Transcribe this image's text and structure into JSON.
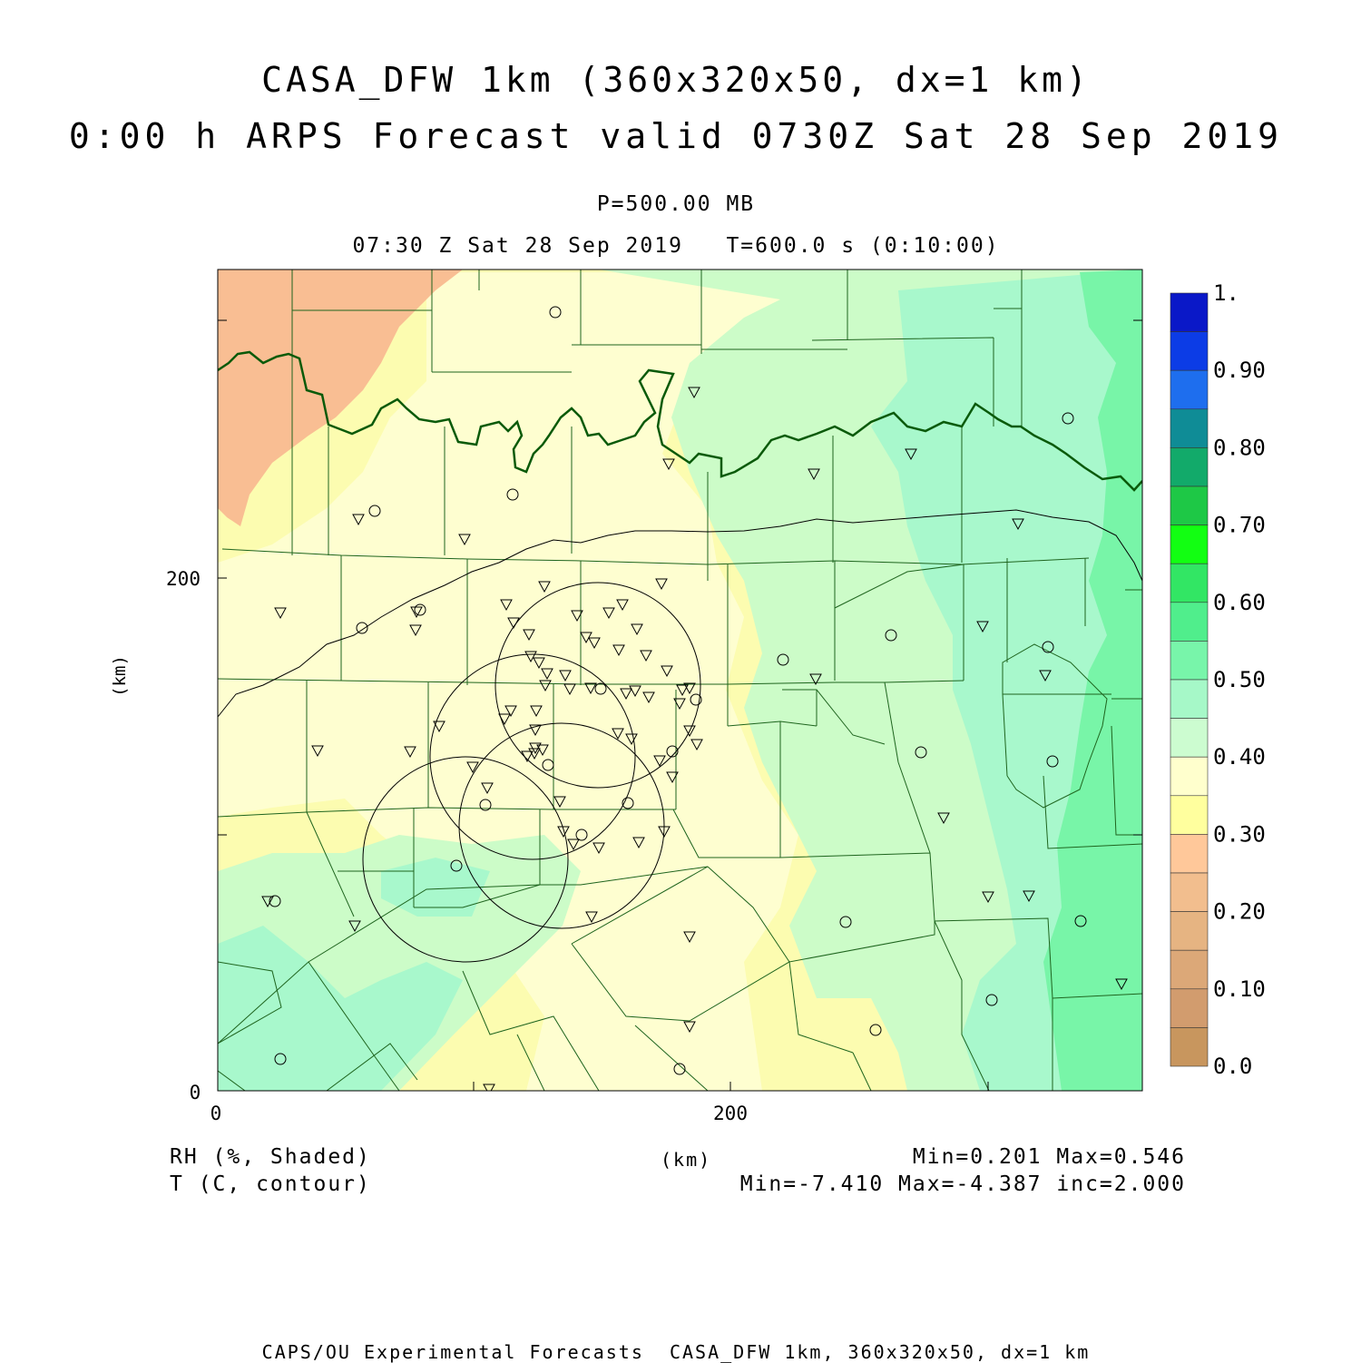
{
  "title": {
    "line1": "CASA_DFW 1km (360x320x50, dx=1 km)",
    "line2": "0:00 h ARPS Forecast valid 0730Z Sat 28 Sep 2019"
  },
  "subtitle": {
    "level": "P=500.00 MB",
    "valid": "07:30 Z Sat 28 Sep 2019   T=600.0 s (0:10:00)"
  },
  "axes": {
    "x_label": "(km)",
    "y_label": "(km)",
    "x_ticks": [
      "0",
      "200"
    ],
    "y_ticks": [
      "0",
      "200"
    ],
    "x_range_km": [
      0,
      360
    ],
    "y_range_km": [
      0,
      320
    ]
  },
  "colorbar": {
    "labels": [
      "1.",
      "0.90",
      "0.80",
      "0.70",
      "0.60",
      "0.50",
      "0.40",
      "0.30",
      "0.20",
      "0.10",
      "0.0"
    ],
    "colors": [
      "#0a18c8",
      "#0c3ce6",
      "#1e6eee",
      "#0f8c96",
      "#12aa6a",
      "#1ec846",
      "#12ff12",
      "#32e664",
      "#50ee8c",
      "#78f5aa",
      "#a6f8c8",
      "#ccfcd0",
      "#ffffcd",
      "#ffff9e",
      "#ffc89a",
      "#f2be8e",
      "#e6b482",
      "#dca878",
      "#d29c6e",
      "#c8965e"
    ]
  },
  "field_colors": {
    "orange": "#f9be93",
    "yellow": "#fcfcb0",
    "cream": "#fefed0",
    "pale_green": "#ccfcc8",
    "mint": "#a8f8cc",
    "green": "#78f5a8",
    "county_lines": "#1e641e",
    "state_line": "#0a5a0a"
  },
  "footer": {
    "left1": "RH (%, Shaded)",
    "left2": "T (C, contour)",
    "center": "(km)",
    "right1": "Min=0.201 Max=0.546",
    "right2": "Min=-7.410 Max=-4.387 inc=2.000",
    "bottom": "CAPS/OU Experimental Forecasts  CASA_DFW 1km, 360x320x50, dx=1 km"
  }
}
